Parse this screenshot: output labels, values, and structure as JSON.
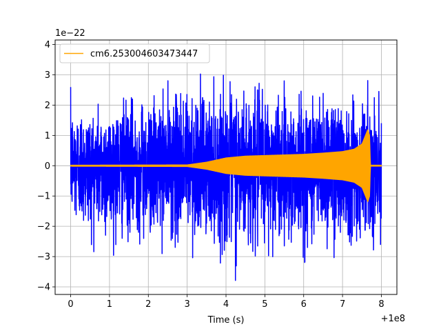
{
  "chart_data": {
    "type": "line",
    "title": "",
    "xlabel": "Time (s)",
    "ylabel": "",
    "x_offset_label": "+1e8",
    "y_scale_label": "1e−22",
    "xlim": [
      -0.4,
      8.4
    ],
    "ylim": [
      -4.25,
      4.15
    ],
    "x_ticks": [
      0,
      1,
      2,
      3,
      4,
      5,
      6,
      7,
      8
    ],
    "x_tick_labels": [
      "0",
      "1",
      "2",
      "3",
      "4",
      "5",
      "6",
      "7",
      "8"
    ],
    "y_ticks": [
      -4,
      -3,
      -2,
      -1,
      0,
      1,
      2,
      3,
      4
    ],
    "y_tick_labels": [
      "−4",
      "−3",
      "−2",
      "−1",
      "0",
      "1",
      "2",
      "3",
      "4"
    ],
    "grid": true,
    "legend_position": "top-left",
    "series": [
      {
        "name": "",
        "color": "#0000ff",
        "style": "noise",
        "x_range": [
          0,
          8
        ],
        "envelope": {
          "x": [
            0,
            0.5,
            1,
            1.5,
            2,
            2.5,
            3,
            3.5,
            4,
            4.3,
            4.6,
            5,
            5.5,
            6,
            6.5,
            7,
            7.5,
            8
          ],
          "upper": [
            2.6,
            2.4,
            2.5,
            2.6,
            2.7,
            2.8,
            3.3,
            2.9,
            3.0,
            3.4,
            2.9,
            3.2,
            2.8,
            3.0,
            3.2,
            3.1,
            2.9,
            2.6
          ],
          "lower": [
            -2.3,
            -2.8,
            -3.0,
            -2.8,
            -2.9,
            -2.9,
            -3.1,
            -3.0,
            -3.3,
            -3.9,
            -3.4,
            -3.3,
            -3.0,
            -3.2,
            -3.1,
            -3.2,
            -2.9,
            -2.7
          ]
        }
      },
      {
        "name": "cm6.253004603473447",
        "color": "#ffa500",
        "style": "chirp",
        "x_range": [
          0,
          8
        ],
        "envelope": {
          "x": [
            0,
            3.0,
            3.5,
            4.0,
            4.5,
            5.0,
            6.0,
            6.5,
            7.0,
            7.3,
            7.5,
            7.65,
            7.7,
            7.72,
            8.0
          ],
          "amplitude": [
            0.02,
            0.03,
            0.12,
            0.26,
            0.32,
            0.34,
            0.38,
            0.42,
            0.47,
            0.55,
            0.72,
            1.2,
            1.0,
            0.02,
            0.02
          ]
        }
      }
    ]
  }
}
